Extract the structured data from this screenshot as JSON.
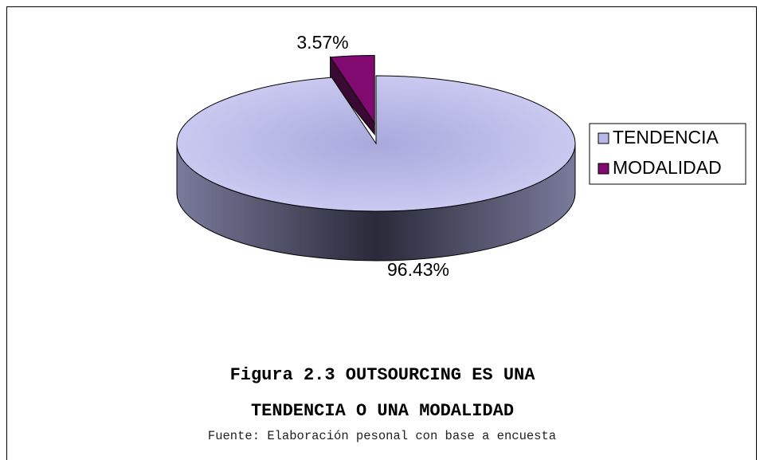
{
  "chart_data": {
    "type": "pie",
    "title": "Figura 2.3 OUTSOURCING ES UNA TENDENCIA O UNA MODALIDAD",
    "source": "Fuente: Elaboración pesonal con base a encuesta",
    "categories": [
      "TENDENCIA",
      "MODALIDAD"
    ],
    "values": [
      96.43,
      3.57
    ],
    "value_labels": [
      "96.43%",
      "3.57%"
    ],
    "colors": [
      "#b8b8ea",
      "#800a70"
    ],
    "legend": "right"
  }
}
